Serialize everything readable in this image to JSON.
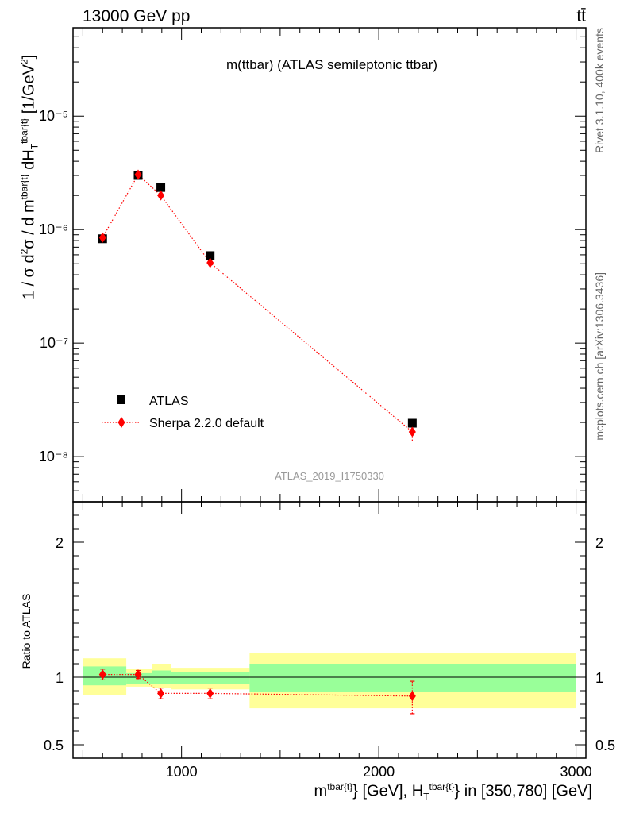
{
  "header": {
    "energy_label": "13000 GeV pp",
    "process_label": "tt̄"
  },
  "side_labels": {
    "rivet": "Rivet 3.1.10,  400k events",
    "mcplots": "mcplots.cern.ch [arXiv:1306.3436]"
  },
  "chart_data": [
    {
      "type": "scatter",
      "title": "m(ttbar) (ATLAS semileptonic ttbar)",
      "ylabel": "1 / σ d²σ / d m^{tbar{t}} dH_T^{tbar{t}} [1/GeV²]",
      "yscale": "log",
      "xlim": [
        450,
        3050
      ],
      "ylim": [
        4e-09,
        6e-05
      ],
      "yticks": [
        1e-08,
        1e-07,
        1e-06,
        1e-05
      ],
      "ytick_labels": [
        "10⁻⁸",
        "10⁻⁷",
        "10⁻⁶",
        "10⁻⁵"
      ],
      "annotation": "ATLAS_2019_I1750330",
      "legend_position": "lower-left",
      "series": [
        {
          "name": "ATLAS",
          "marker": "square",
          "color": "#000000",
          "x": [
            600,
            780,
            895,
            1145,
            2170
          ],
          "y": [
            8.3e-07,
            3e-06,
            2.35e-06,
            5.9e-07,
            1.97e-08
          ]
        },
        {
          "name": "Sherpa 2.2.0 default",
          "marker": "diamond",
          "color": "#ff0000",
          "line": "dotted",
          "x": [
            600,
            780,
            895,
            1145,
            2170
          ],
          "y": [
            8.5e-07,
            3.05e-06,
            2e-06,
            5.1e-07,
            1.65e-08
          ],
          "err_lo": [
            7.9e-07,
            2.9e-06,
            1.88e-06,
            4.8e-07,
            1.38e-08
          ],
          "err_hi": [
            9.1e-07,
            3.2e-06,
            2.12e-06,
            5.4e-07,
            1.92e-08
          ]
        }
      ]
    },
    {
      "type": "scatter",
      "ylabel": "Ratio to ATLAS",
      "xlabel": "m^{tbar{t}} [GeV], H_T^{tbar{t}} in [350,780] [GeV]",
      "xlim": [
        450,
        3050
      ],
      "ylim": [
        0.4,
        2.3
      ],
      "xticks": [
        1000,
        2000,
        3000
      ],
      "xtick_labels": [
        "1000",
        "2000",
        "3000"
      ],
      "yticks": [
        0.5,
        1,
        2
      ],
      "ytick_labels": [
        "0.5",
        "1",
        "2"
      ],
      "bands": [
        {
          "x": [
            500,
            720
          ],
          "green": [
            0.94,
            1.08
          ],
          "yellow": [
            0.87,
            1.14
          ]
        },
        {
          "x": [
            720,
            850
          ],
          "green": [
            0.95,
            1.03
          ],
          "yellow": [
            0.93,
            1.06
          ]
        },
        {
          "x": [
            850,
            945
          ],
          "green": [
            0.95,
            1.05
          ],
          "yellow": [
            0.92,
            1.1
          ]
        },
        {
          "x": [
            945,
            1345
          ],
          "green": [
            0.95,
            1.04
          ],
          "yellow": [
            0.91,
            1.07
          ]
        },
        {
          "x": [
            1345,
            3000
          ],
          "green": [
            0.89,
            1.1
          ],
          "yellow": [
            0.77,
            1.18
          ]
        }
      ],
      "band_colors": {
        "green": "#99ff99",
        "yellow": "#ffff99"
      },
      "series": [
        {
          "name": "Sherpa 2.2.0 default",
          "marker": "diamond",
          "color": "#ff0000",
          "line": "dotted",
          "x": [
            600,
            780,
            895,
            1145,
            2170
          ],
          "y": [
            1.02,
            1.02,
            0.88,
            0.88,
            0.86
          ],
          "err_lo": [
            0.98,
            0.99,
            0.84,
            0.84,
            0.73
          ],
          "err_hi": [
            1.06,
            1.05,
            0.92,
            0.92,
            0.97
          ]
        }
      ]
    }
  ]
}
